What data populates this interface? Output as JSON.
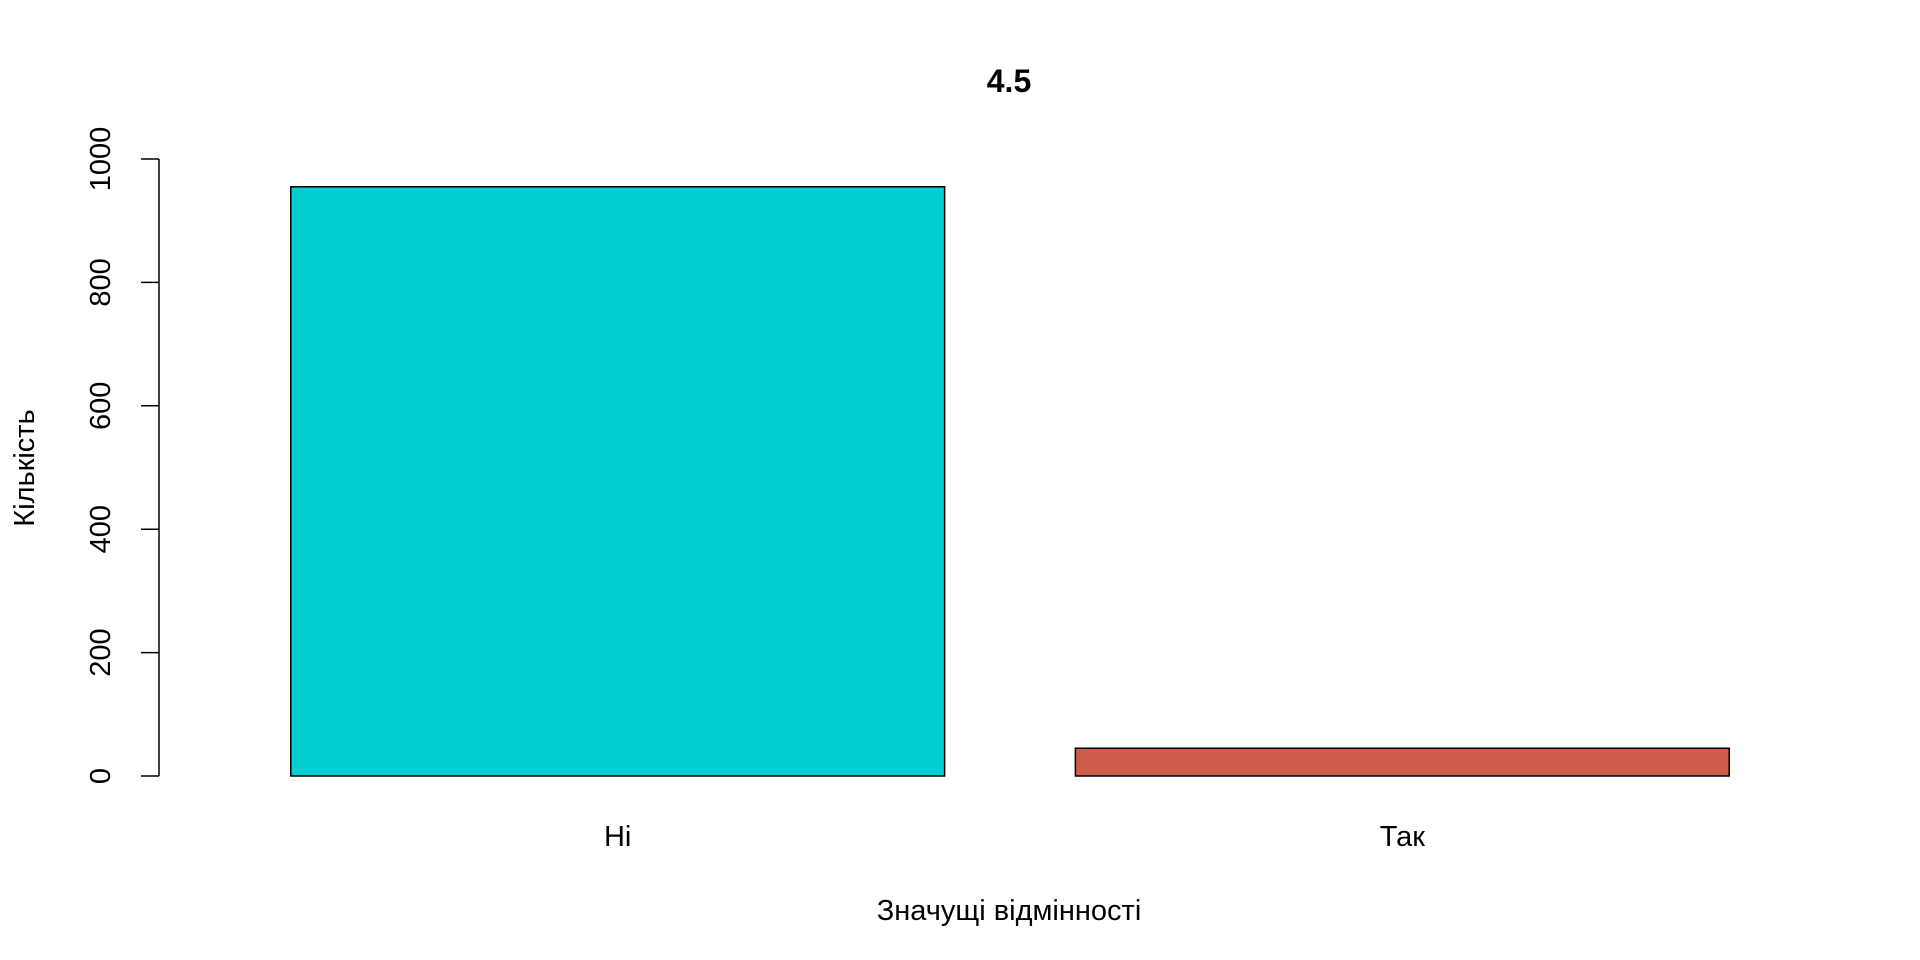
{
  "chart_data": {
    "type": "bar",
    "title": "4.5",
    "xlabel": "Значущі відмінності",
    "ylabel": "Кількість",
    "categories": [
      "Ні",
      "Так"
    ],
    "values": [
      955,
      45
    ],
    "colors": [
      "#00CED1",
      "#CD5C4B"
    ],
    "ylim": [
      0,
      1000
    ],
    "yticks": [
      0,
      200,
      400,
      600,
      800,
      1000
    ],
    "grid": false,
    "legend": "none"
  }
}
